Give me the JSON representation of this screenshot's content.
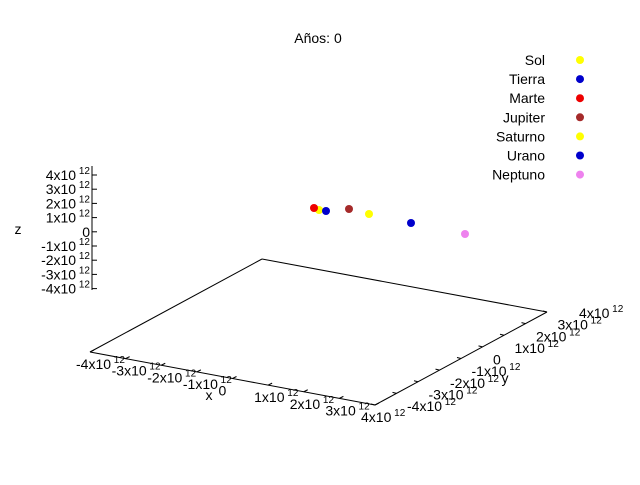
{
  "chart_data": {
    "type": "scatter",
    "title": "Años: 0",
    "xlabel": "x",
    "ylabel": "y",
    "zlabel": "z",
    "xlim": [
      -4000000000000.0,
      4000000000000.0
    ],
    "ylim": [
      -4000000000000.0,
      4000000000000.0
    ],
    "zlim": [
      -4000000000000.0,
      4000000000000.0
    ],
    "x_ticks": [
      "-4x10",
      "-3x10",
      "-2x10",
      "-1x10",
      "0",
      "1x10",
      "2x10",
      "3x10",
      "4x10"
    ],
    "y_ticks": [
      "-4x10",
      "-3x10",
      "-2x10",
      "-1x10",
      "0",
      "1x10",
      "2x10",
      "3x10",
      "4x10"
    ],
    "z_ticks": [
      "4x10",
      "3x10",
      "2x10",
      "1x10",
      "0",
      "-1x10",
      "-2x10",
      "-3x10",
      "-4x10"
    ],
    "tick_exponent": "12",
    "legend_position": "top-right",
    "series": [
      {
        "name": "Sol",
        "color": "#ffff00",
        "x": 0,
        "y": 0,
        "z": 0
      },
      {
        "name": "Tierra",
        "color": "#0000cc",
        "x": 150000000000.0,
        "y": 0,
        "z": 0
      },
      {
        "name": "Marte",
        "color": "#ee0000",
        "x": 230000000000.0,
        "y": 0,
        "z": 0
      },
      {
        "name": "Jupiter",
        "color": "#a52a2a",
        "x": 780000000000.0,
        "y": 0,
        "z": 0
      },
      {
        "name": "Saturno",
        "color": "#ffff00",
        "x": 1430000000000.0,
        "y": 0,
        "z": 0
      },
      {
        "name": "Urano",
        "color": "#0000cc",
        "x": 2870000000000.0,
        "y": 0,
        "z": 0
      },
      {
        "name": "Neptuno",
        "color": "#ee82ee",
        "x": 4500000000000.0,
        "y": 0,
        "z": 0
      }
    ]
  }
}
